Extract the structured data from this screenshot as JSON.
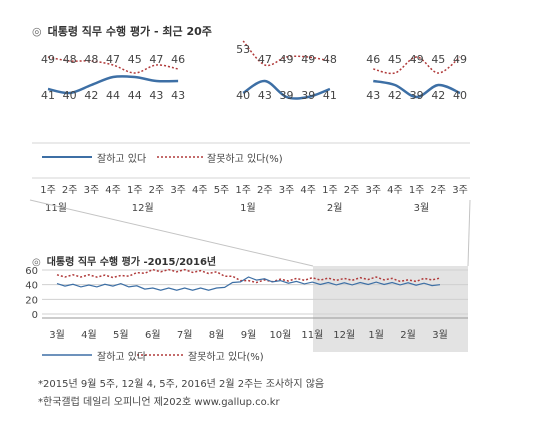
{
  "top_chart": {
    "title": "대통령 직무 수행 평가 - 최근 20주",
    "bullet": "◎",
    "legend_approve": "잘하고 있다",
    "legend_disapprove": "잘못하고 있다(%)",
    "x_ticks": [
      "1주",
      "2주",
      "3주",
      "4주",
      "1주",
      "2주",
      "3주",
      "4주",
      "5주",
      "1주",
      "2주",
      "3주",
      "4주",
      "1주",
      "2주",
      "3주",
      "4주",
      "1주",
      "2주",
      "3주"
    ],
    "month_labels": [
      {
        "tick_index": 0,
        "label": "11월"
      },
      {
        "tick_index": 4,
        "label": "12월"
      },
      {
        "tick_index": 9,
        "label": "1월"
      },
      {
        "tick_index": 13,
        "label": "2월"
      },
      {
        "tick_index": 17,
        "label": "3월"
      }
    ]
  },
  "bottom_chart": {
    "title": "대통령 직무 수행 평가 -2015/2016년",
    "bullet": "◎",
    "legend_approve": "잘하고 있다",
    "legend_disapprove": "잘못하고 있다(%)",
    "y_ticks": [
      "60",
      "40",
      "20",
      "0"
    ],
    "month_labels": [
      "3월",
      "4월",
      "5월",
      "6월",
      "7월",
      "8월",
      "9월",
      "10월",
      "11월",
      "12월",
      "1월",
      "2월",
      "3월"
    ]
  },
  "notes": {
    "line1": "*2015년 9월 5주, 12월 4, 5주, 2016년 2월 2주는 조사하지 않음",
    "line2": "*한국갤럽 데일리 오피니언 제202호 www.gallup.co.kr"
  },
  "colors": {
    "approve": "#3d6fa5",
    "disapprove": "#b03a3a",
    "grid": "#d0d0d0",
    "shade": "#e3e3e3",
    "text": "#444444"
  },
  "chart_data": [
    {
      "type": "line",
      "title": "대통령 직무 수행 평가 - 최근 20주",
      "categories": [
        "11월 1주",
        "11월 2주",
        "11월 3주",
        "11월 4주",
        "12월 1주",
        "12월 2주",
        "12월 3주",
        "12월 4주",
        "12월 5주",
        "1월 1주",
        "1월 2주",
        "1월 3주",
        "1월 4주",
        "2월 1주",
        "2월 2주",
        "2월 3주",
        "2월 4주",
        "3월 1주",
        "3월 2주",
        "3월 3주"
      ],
      "series": [
        {
          "name": "잘하고 있다",
          "values": [
            41,
            40,
            42,
            44,
            44,
            43,
            43,
            null,
            null,
            40,
            43,
            39,
            39,
            41,
            null,
            43,
            42,
            39,
            42,
            40
          ]
        },
        {
          "name": "잘못하고 있다(%)",
          "values": [
            49,
            48,
            48,
            47,
            45,
            47,
            46,
            null,
            null,
            53,
            47,
            49,
            49,
            48,
            null,
            46,
            45,
            49,
            45,
            49
          ]
        }
      ],
      "data_labels": true,
      "legend": "bottom-left"
    },
    {
      "type": "line",
      "title": "대통령 직무 수행 평가 -2015/2016년",
      "categories": [
        "3월",
        "4월",
        "5월",
        "6월",
        "7월",
        "8월",
        "9월",
        "10월",
        "11월",
        "12월",
        "1월",
        "2월",
        "3월"
      ],
      "ylim": [
        0,
        60
      ],
      "grid": true,
      "series": [
        {
          "name": "잘하고 있다",
          "values": [
            40,
            38,
            40,
            34,
            34,
            34,
            49,
            44,
            42,
            41,
            42,
            41,
            40
          ]
        },
        {
          "name": "잘못하고 있다(%)",
          "values": [
            52,
            52,
            51,
            59,
            59,
            56,
            44,
            46,
            48,
            47,
            49,
            45,
            49
          ]
        }
      ],
      "legend": "bottom-left"
    }
  ]
}
